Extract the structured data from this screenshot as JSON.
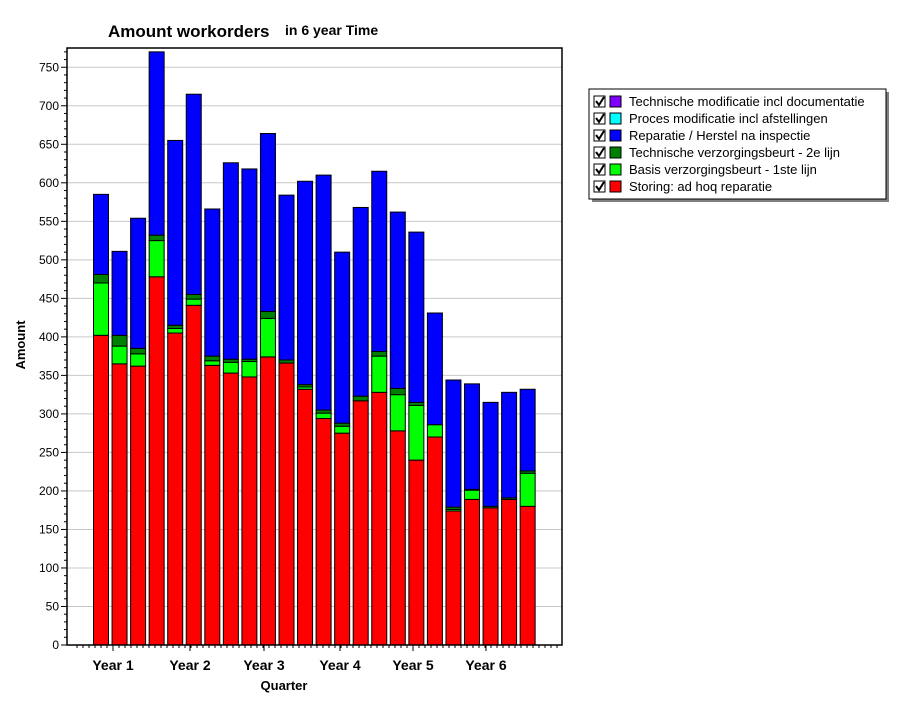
{
  "chart_data": {
    "type": "bar",
    "stacked": true,
    "title": "Amount workorders",
    "subtitle": "in 6 year Time",
    "xlabel": "Quarter",
    "ylabel": "Amount",
    "ylim": [
      0,
      775
    ],
    "y_ticks": [
      0,
      50,
      100,
      150,
      200,
      250,
      300,
      350,
      400,
      450,
      500,
      550,
      600,
      650,
      700,
      750
    ],
    "x_tick_labels": [
      "Year 1",
      "Year 2",
      "Year 3",
      "Year 4",
      "Year 5",
      "Year 6"
    ],
    "bar_count": 24,
    "grid": true,
    "legend_position": "right",
    "series": [
      {
        "name": "Storing: ad hoq reparatie",
        "color": "#ff0000",
        "values": [
          402,
          365,
          362,
          478,
          405,
          441,
          363,
          353,
          348,
          374,
          366,
          332,
          294,
          275,
          317,
          328,
          278,
          240,
          270,
          174,
          189,
          178,
          189,
          180
        ]
      },
      {
        "name": "Basis verzorgingsbeurt - 1ste lijn",
        "color": "#00ff00",
        "values": [
          68,
          23,
          16,
          47,
          6,
          8,
          6,
          14,
          20,
          50,
          0,
          3,
          7,
          9,
          0,
          47,
          47,
          71,
          16,
          2,
          12,
          0,
          0,
          43
        ]
      },
      {
        "name": "Technische verzorgingsbeurt - 2e lijn",
        "color": "#008000",
        "values": [
          11,
          14,
          7,
          7,
          4,
          6,
          6,
          4,
          3,
          9,
          4,
          3,
          4,
          4,
          6,
          6,
          8,
          4,
          0,
          3,
          1,
          2,
          2,
          3
        ]
      },
      {
        "name": "Reparatie / Herstel na inspectie",
        "color": "#0000ff",
        "values": [
          104,
          109,
          169,
          238,
          240,
          260,
          191,
          255,
          247,
          231,
          214,
          264,
          305,
          222,
          245,
          234,
          229,
          221,
          145,
          165,
          137,
          135,
          137,
          106
        ]
      },
      {
        "name": "Proces modificatie incl afstellingen",
        "color": "#00ffff",
        "values": [
          0,
          0,
          0,
          0,
          0,
          0,
          0,
          0,
          0,
          0,
          0,
          0,
          0,
          0,
          0,
          0,
          0,
          0,
          0,
          0,
          0,
          0,
          0,
          0
        ]
      },
      {
        "name": "Technische modificatie incl documentatie",
        "color": "#8000ff",
        "values": [
          0,
          0,
          0,
          0,
          0,
          0,
          0,
          0,
          0,
          0,
          0,
          0,
          0,
          0,
          0,
          0,
          0,
          0,
          0,
          0,
          0,
          0,
          0,
          0
        ]
      }
    ],
    "legend_order": [
      "Technische modificatie incl documentatie",
      "Proces modificatie incl afstellingen",
      "Reparatie / Herstel na inspectie",
      "Technische verzorgingsbeurt - 2e lijn",
      "Basis verzorgingsbeurt - 1ste lijn",
      "Storing: ad hoq reparatie"
    ],
    "legend_checked": true
  }
}
